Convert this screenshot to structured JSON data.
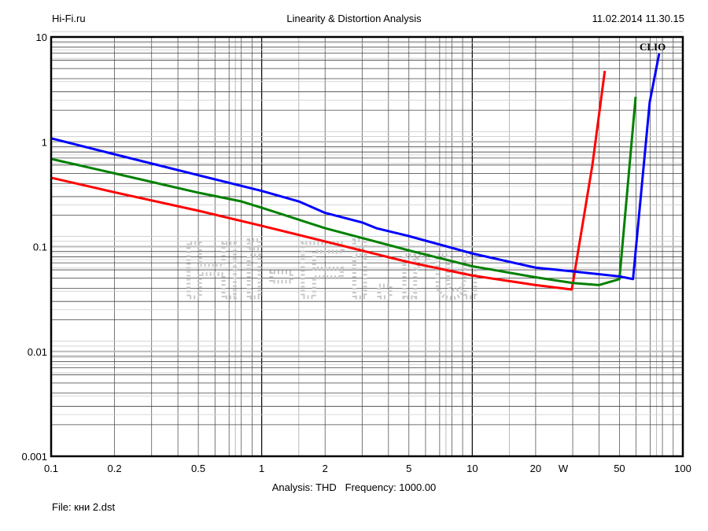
{
  "header": {
    "left": "Hi-Fi.ru",
    "center": "Linearity & Distortion Analysis",
    "right": "11.02.2014 11.30.15"
  },
  "footer": {
    "analysis": "Analysis: THD   Frequency: 1000.00",
    "file": "File: кни 2.dst"
  },
  "brand": "CLIO",
  "watermark": "Hi-Fi.ru",
  "chart_data": {
    "type": "line",
    "title": "Linearity & Distortion Analysis",
    "xscale": "log",
    "yscale": "log",
    "xlim": [
      0.1,
      100
    ],
    "ylim": [
      0.001,
      10
    ],
    "x_unit_label": "W",
    "x_ticks": [
      "0.1",
      "0.2",
      "0.5",
      "1",
      "2",
      "5",
      "10",
      "20",
      "50",
      "100"
    ],
    "y_ticks": [
      "10",
      "1",
      "0.1",
      "0.01",
      "0.001"
    ],
    "grid": true,
    "series": [
      {
        "color": "#ff0000",
        "points": [
          [
            0.1,
            0.454
          ],
          [
            0.2,
            0.33
          ],
          [
            0.5,
            0.22
          ],
          [
            1,
            0.158
          ],
          [
            2,
            0.112
          ],
          [
            5,
            0.071
          ],
          [
            10,
            0.053
          ],
          [
            20,
            0.043
          ],
          [
            29.7,
            0.039
          ],
          [
            37.2,
            0.6
          ],
          [
            42.6,
            4.75
          ]
        ]
      },
      {
        "color": "#008000",
        "points": [
          [
            0.1,
            0.687
          ],
          [
            0.2,
            0.5
          ],
          [
            0.5,
            0.327
          ],
          [
            0.8,
            0.27
          ],
          [
            1,
            0.235
          ],
          [
            2,
            0.15
          ],
          [
            5,
            0.092
          ],
          [
            10,
            0.065
          ],
          [
            20,
            0.051
          ],
          [
            30,
            0.045
          ],
          [
            40,
            0.043
          ],
          [
            50,
            0.049
          ],
          [
            59.7,
            2.69
          ]
        ]
      },
      {
        "color": "#0000ff",
        "points": [
          [
            0.1,
            1.08
          ],
          [
            0.2,
            0.76
          ],
          [
            0.5,
            0.48
          ],
          [
            1,
            0.34
          ],
          [
            1.5,
            0.27
          ],
          [
            2,
            0.21
          ],
          [
            3,
            0.17
          ],
          [
            3.5,
            0.15
          ],
          [
            5,
            0.126
          ],
          [
            10,
            0.086
          ],
          [
            20,
            0.063
          ],
          [
            30,
            0.058
          ],
          [
            50,
            0.052
          ],
          [
            58,
            0.049
          ],
          [
            69.6,
            2.38
          ],
          [
            77.2,
            6.95
          ]
        ]
      }
    ]
  }
}
